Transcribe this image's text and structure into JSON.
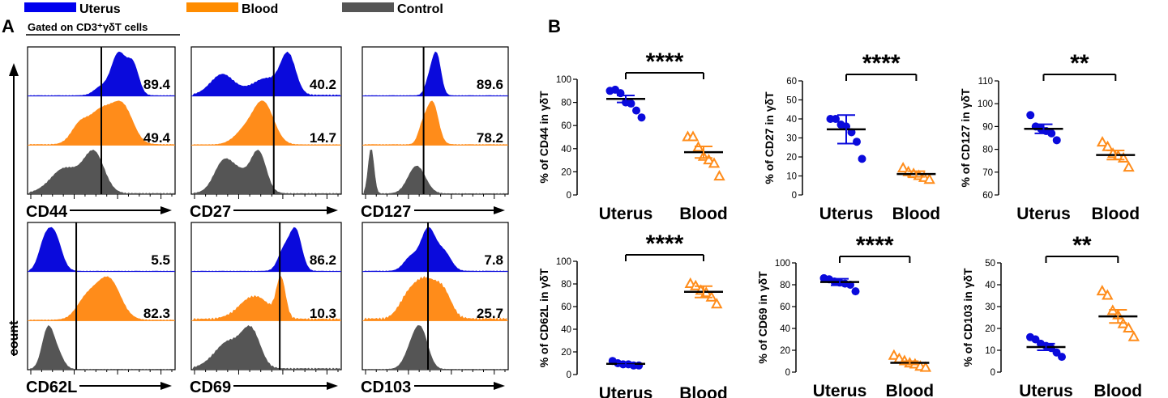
{
  "legend": [
    {
      "label": "Uterus",
      "color": "#0000ee"
    },
    {
      "label": "Blood",
      "color": "#ff8c00"
    },
    {
      "label": "Control",
      "color": "#555555"
    }
  ],
  "colors": {
    "uterus": "#0a0adc",
    "blood": "#ff8c1a",
    "control": "#555555",
    "axis": "#000000"
  },
  "panel_a": {
    "label": "A",
    "gating": "Gated on CD3⁺γδT cells",
    "ylabel": "count",
    "histograms": [
      {
        "marker": "CD44",
        "values": {
          "uterus": "89.4",
          "blood": "49.4"
        }
      },
      {
        "marker": "CD27",
        "values": {
          "uterus": "40.2",
          "blood": "14.7"
        }
      },
      {
        "marker": "CD127",
        "values": {
          "uterus": "89.6",
          "blood": "78.2"
        }
      },
      {
        "marker": "CD62L",
        "values": {
          "uterus": "5.5",
          "blood": "82.3"
        }
      },
      {
        "marker": "CD69",
        "values": {
          "uterus": "86.2",
          "blood": "10.3"
        }
      },
      {
        "marker": "CD103",
        "values": {
          "uterus": "7.8",
          "blood": "25.7"
        }
      }
    ]
  },
  "panel_b": {
    "label": "B"
  },
  "chart_data": [
    {
      "type": "scatter",
      "ylabel": "% of CD44 in γδT",
      "categories": [
        "Uterus",
        "Blood"
      ],
      "ylim": [
        0,
        100
      ],
      "yticks": [
        0,
        20,
        40,
        60,
        80,
        100
      ],
      "significance": "****",
      "series": [
        {
          "name": "Uterus",
          "values": [
            90,
            91,
            88,
            80,
            79,
            73,
            67
          ],
          "mean": 83,
          "sem": 3
        },
        {
          "name": "Blood",
          "values": [
            50,
            50,
            41,
            33,
            30,
            27,
            16
          ],
          "mean": 37,
          "sem": 5
        }
      ]
    },
    {
      "type": "scatter",
      "ylabel": "% of CD27 in γδT",
      "categories": [
        "Uterus",
        "Blood"
      ],
      "ylim": [
        0,
        60
      ],
      "yticks": [
        0,
        10,
        20,
        30,
        40,
        50,
        60
      ],
      "significance": "****",
      "series": [
        {
          "name": "Uterus",
          "values": [
            40,
            40,
            37,
            36,
            33,
            28,
            19
          ],
          "mean": 34.5,
          "sem": 7.5
        },
        {
          "name": "Blood",
          "values": [
            14,
            12,
            11,
            10,
            9,
            8
          ],
          "mean": 11,
          "sem": 1.5
        }
      ]
    },
    {
      "type": "scatter",
      "ylabel": "% of CD127 in γδT",
      "categories": [
        "Uterus",
        "Blood"
      ],
      "ylim": [
        60,
        110
      ],
      "yticks": [
        60,
        70,
        80,
        90,
        100,
        110
      ],
      "significance": "**",
      "series": [
        {
          "name": "Uterus",
          "values": [
            95,
            90,
            89,
            88,
            87,
            84
          ],
          "mean": 89,
          "sem": 2
        },
        {
          "name": "Blood",
          "values": [
            83,
            81,
            78,
            77,
            76,
            72
          ],
          "mean": 77.5,
          "sem": 2
        }
      ]
    },
    {
      "type": "scatter",
      "ylabel": "% of CD62L in γδT",
      "categories": [
        "Uterus",
        "Blood"
      ],
      "ylim": [
        0,
        100
      ],
      "yticks": [
        0,
        20,
        40,
        60,
        80,
        100
      ],
      "significance": "****",
      "series": [
        {
          "name": "Uterus",
          "values": [
            12,
            10,
            9,
            9,
            8,
            8
          ],
          "mean": 9.5,
          "sem": 1
        },
        {
          "name": "Blood",
          "values": [
            80,
            78,
            74,
            72,
            68,
            62
          ],
          "mean": 73,
          "sem": 5
        }
      ]
    },
    {
      "type": "scatter",
      "ylabel": "% of CD69 in γδT",
      "categories": [
        "Uterus",
        "Blood"
      ],
      "ylim": [
        0,
        100
      ],
      "yticks": [
        0,
        20,
        40,
        60,
        80,
        100
      ],
      "significance": "****",
      "series": [
        {
          "name": "Uterus",
          "values": [
            86,
            85,
            83,
            82,
            81,
            80,
            74
          ],
          "mean": 82.5,
          "sem": 3
        },
        {
          "name": "Blood",
          "values": [
            15,
            12,
            10,
            8,
            7,
            5,
            4
          ],
          "mean": 8.5,
          "sem": 1.5
        }
      ]
    },
    {
      "type": "scatter",
      "ylabel": "% of CD103 in γδT",
      "categories": [
        "Uterus",
        "Blood"
      ],
      "ylim": [
        0,
        50
      ],
      "yticks": [
        0,
        10,
        20,
        30,
        40,
        50
      ],
      "significance": "**",
      "series": [
        {
          "name": "Uterus",
          "values": [
            16,
            15,
            13,
            12,
            11,
            9,
            7
          ],
          "mean": 11.5,
          "sem": 1.5
        },
        {
          "name": "Blood",
          "values": [
            37,
            35,
            28,
            26,
            22,
            20,
            16
          ],
          "mean": 25.5,
          "sem": 3
        }
      ]
    }
  ]
}
